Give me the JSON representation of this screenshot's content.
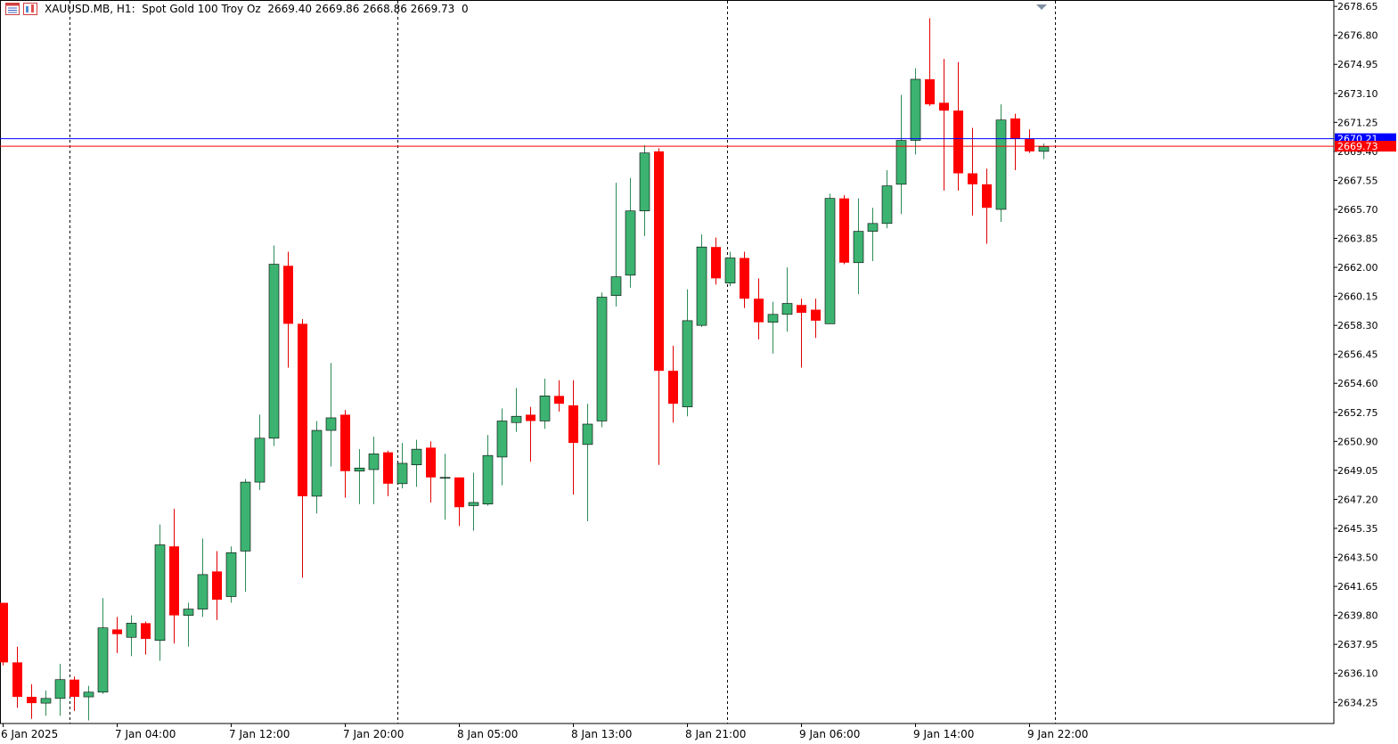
{
  "header": {
    "symbol": "XAUUSD.MB",
    "timeframe": "H1:",
    "description": "Spot Gold 100 Troy Oz",
    "ohlc": "2669.40 2669.86 2668.86 2669.73",
    "volume": "0"
  },
  "colors": {
    "bull": "#3cb371",
    "bear": "#ff0000",
    "wick_bull": "#2e8b57",
    "wick_bear": "#e00000",
    "ask_line": "#0000ff",
    "bid_line": "#ff0000",
    "separator": "#000000"
  },
  "chart_data": {
    "type": "candlestick",
    "symbol": "XAUUSD.MB",
    "timeframe": "H1",
    "ylim": [
      2632.9,
      2679.0
    ],
    "y_ticks": [
      "2678.65",
      "2676.80",
      "2674.95",
      "2673.10",
      "2671.25",
      "2669.40",
      "2667.55",
      "2665.70",
      "2663.85",
      "2662.00",
      "2660.15",
      "2658.30",
      "2656.45",
      "2654.60",
      "2652.75",
      "2650.90",
      "2649.05",
      "2647.20",
      "2645.35",
      "2643.50",
      "2641.65",
      "2639.80",
      "2637.95",
      "2636.10",
      "2634.25"
    ],
    "x_labels": [
      {
        "label": "6 Jan 2025",
        "index": 0
      },
      {
        "label": "7 Jan 04:00",
        "index": 8
      },
      {
        "label": "7 Jan 12:00",
        "index": 16
      },
      {
        "label": "7 Jan 20:00",
        "index": 24
      },
      {
        "label": "8 Jan 05:00",
        "index": 32
      },
      {
        "label": "8 Jan 13:00",
        "index": 40
      },
      {
        "label": "8 Jan 21:00",
        "index": 48
      },
      {
        "label": "9 Jan 06:00",
        "index": 56
      },
      {
        "label": "9 Jan 14:00",
        "index": 64
      },
      {
        "label": "9 Jan 22:00",
        "index": 72
      }
    ],
    "day_separators": [
      4.7,
      27.7,
      50.8,
      73.8
    ],
    "ask": {
      "value": 2670.21,
      "label": "2670.21"
    },
    "bid": {
      "value": 2669.73,
      "label": "2669.73"
    },
    "candles": [
      {
        "o": 2640.6,
        "h": 2640.6,
        "l": 2636.6,
        "c": 2636.8
      },
      {
        "o": 2636.8,
        "h": 2637.8,
        "l": 2633.9,
        "c": 2634.6
      },
      {
        "o": 2634.6,
        "h": 2635.4,
        "l": 2633.2,
        "c": 2634.2
      },
      {
        "o": 2634.2,
        "h": 2635.0,
        "l": 2633.4,
        "c": 2634.5
      },
      {
        "o": 2634.5,
        "h": 2636.7,
        "l": 2633.4,
        "c": 2635.7
      },
      {
        "o": 2635.7,
        "h": 2635.9,
        "l": 2633.7,
        "c": 2634.6
      },
      {
        "o": 2634.6,
        "h": 2635.3,
        "l": 2633.1,
        "c": 2634.9
      },
      {
        "o": 2634.9,
        "h": 2640.9,
        "l": 2634.8,
        "c": 2639.0
      },
      {
        "o": 2638.9,
        "h": 2639.7,
        "l": 2637.4,
        "c": 2638.6
      },
      {
        "o": 2638.4,
        "h": 2639.8,
        "l": 2637.2,
        "c": 2639.3
      },
      {
        "o": 2639.3,
        "h": 2639.4,
        "l": 2637.3,
        "c": 2638.3
      },
      {
        "o": 2638.2,
        "h": 2645.6,
        "l": 2636.9,
        "c": 2644.3
      },
      {
        "o": 2644.2,
        "h": 2646.6,
        "l": 2638.0,
        "c": 2639.8
      },
      {
        "o": 2639.8,
        "h": 2640.6,
        "l": 2637.8,
        "c": 2640.2
      },
      {
        "o": 2640.2,
        "h": 2644.7,
        "l": 2639.7,
        "c": 2642.4
      },
      {
        "o": 2642.6,
        "h": 2643.9,
        "l": 2639.5,
        "c": 2640.8
      },
      {
        "o": 2641.0,
        "h": 2644.2,
        "l": 2640.6,
        "c": 2643.8
      },
      {
        "o": 2643.9,
        "h": 2648.5,
        "l": 2641.3,
        "c": 2648.3
      },
      {
        "o": 2648.3,
        "h": 2652.6,
        "l": 2647.8,
        "c": 2651.1
      },
      {
        "o": 2651.1,
        "h": 2663.4,
        "l": 2650.6,
        "c": 2662.2
      },
      {
        "o": 2662.1,
        "h": 2663.0,
        "l": 2655.6,
        "c": 2658.4
      },
      {
        "o": 2658.4,
        "h": 2658.7,
        "l": 2642.2,
        "c": 2647.4
      },
      {
        "o": 2647.4,
        "h": 2652.2,
        "l": 2646.3,
        "c": 2651.6
      },
      {
        "o": 2651.6,
        "h": 2655.9,
        "l": 2649.3,
        "c": 2652.4
      },
      {
        "o": 2652.6,
        "h": 2652.9,
        "l": 2647.3,
        "c": 2649.0
      },
      {
        "o": 2649.0,
        "h": 2650.4,
        "l": 2646.9,
        "c": 2649.2
      },
      {
        "o": 2649.1,
        "h": 2651.2,
        "l": 2646.9,
        "c": 2650.1
      },
      {
        "o": 2650.2,
        "h": 2650.3,
        "l": 2647.4,
        "c": 2648.2
      },
      {
        "o": 2648.2,
        "h": 2650.8,
        "l": 2647.9,
        "c": 2649.5
      },
      {
        "o": 2649.4,
        "h": 2651.0,
        "l": 2648.0,
        "c": 2650.4
      },
      {
        "o": 2650.5,
        "h": 2650.9,
        "l": 2647.0,
        "c": 2648.6
      },
      {
        "o": 2648.6,
        "h": 2650.1,
        "l": 2645.9,
        "c": 2648.6
      },
      {
        "o": 2648.6,
        "h": 2648.6,
        "l": 2645.5,
        "c": 2646.7
      },
      {
        "o": 2646.8,
        "h": 2648.9,
        "l": 2645.2,
        "c": 2647.0
      },
      {
        "o": 2646.9,
        "h": 2651.3,
        "l": 2646.8,
        "c": 2650.0
      },
      {
        "o": 2649.9,
        "h": 2653.0,
        "l": 2648.1,
        "c": 2652.2
      },
      {
        "o": 2652.1,
        "h": 2654.3,
        "l": 2651.5,
        "c": 2652.5
      },
      {
        "o": 2652.6,
        "h": 2653.1,
        "l": 2649.6,
        "c": 2652.2
      },
      {
        "o": 2652.2,
        "h": 2654.9,
        "l": 2651.7,
        "c": 2653.8
      },
      {
        "o": 2653.8,
        "h": 2654.8,
        "l": 2652.8,
        "c": 2653.3
      },
      {
        "o": 2653.2,
        "h": 2654.8,
        "l": 2647.5,
        "c": 2650.8
      },
      {
        "o": 2650.7,
        "h": 2653.3,
        "l": 2645.8,
        "c": 2652.0
      },
      {
        "o": 2652.2,
        "h": 2660.4,
        "l": 2651.8,
        "c": 2660.1
      },
      {
        "o": 2660.2,
        "h": 2667.4,
        "l": 2659.5,
        "c": 2661.4
      },
      {
        "o": 2661.5,
        "h": 2667.7,
        "l": 2660.7,
        "c": 2665.6
      },
      {
        "o": 2665.6,
        "h": 2669.8,
        "l": 2664.0,
        "c": 2669.3
      },
      {
        "o": 2669.4,
        "h": 2669.6,
        "l": 2649.4,
        "c": 2655.4
      },
      {
        "o": 2655.4,
        "h": 2657.0,
        "l": 2652.1,
        "c": 2653.3
      },
      {
        "o": 2653.1,
        "h": 2660.6,
        "l": 2652.5,
        "c": 2658.6
      },
      {
        "o": 2658.3,
        "h": 2664.1,
        "l": 2658.2,
        "c": 2663.3
      },
      {
        "o": 2663.3,
        "h": 2663.9,
        "l": 2660.9,
        "c": 2661.3
      },
      {
        "o": 2661.0,
        "h": 2663.0,
        "l": 2660.8,
        "c": 2662.6
      },
      {
        "o": 2662.6,
        "h": 2663.0,
        "l": 2659.4,
        "c": 2660.0
      },
      {
        "o": 2660.0,
        "h": 2661.3,
        "l": 2657.4,
        "c": 2658.5
      },
      {
        "o": 2658.5,
        "h": 2659.8,
        "l": 2656.5,
        "c": 2659.0
      },
      {
        "o": 2659.0,
        "h": 2662.0,
        "l": 2657.9,
        "c": 2659.7
      },
      {
        "o": 2659.6,
        "h": 2660.0,
        "l": 2655.6,
        "c": 2659.1
      },
      {
        "o": 2659.3,
        "h": 2660.0,
        "l": 2657.5,
        "c": 2658.6
      },
      {
        "o": 2658.4,
        "h": 2666.7,
        "l": 2658.4,
        "c": 2666.4
      },
      {
        "o": 2666.4,
        "h": 2666.6,
        "l": 2662.2,
        "c": 2662.3
      },
      {
        "o": 2662.3,
        "h": 2666.4,
        "l": 2660.3,
        "c": 2664.3
      },
      {
        "o": 2664.3,
        "h": 2665.8,
        "l": 2662.4,
        "c": 2664.8
      },
      {
        "o": 2664.8,
        "h": 2668.2,
        "l": 2664.5,
        "c": 2667.2
      },
      {
        "o": 2667.3,
        "h": 2673.0,
        "l": 2665.4,
        "c": 2670.1
      },
      {
        "o": 2670.1,
        "h": 2674.7,
        "l": 2669.2,
        "c": 2674.0
      },
      {
        "o": 2674.0,
        "h": 2677.9,
        "l": 2672.3,
        "c": 2672.4
      },
      {
        "o": 2672.5,
        "h": 2675.3,
        "l": 2666.9,
        "c": 2672.0
      },
      {
        "o": 2672.0,
        "h": 2675.1,
        "l": 2666.9,
        "c": 2668.0
      },
      {
        "o": 2668.0,
        "h": 2670.9,
        "l": 2665.3,
        "c": 2667.3
      },
      {
        "o": 2667.3,
        "h": 2668.3,
        "l": 2663.5,
        "c": 2665.8
      },
      {
        "o": 2665.7,
        "h": 2672.4,
        "l": 2664.9,
        "c": 2671.4
      },
      {
        "o": 2671.5,
        "h": 2671.8,
        "l": 2668.2,
        "c": 2670.2
      },
      {
        "o": 2670.2,
        "h": 2670.8,
        "l": 2669.3,
        "c": 2669.4
      },
      {
        "o": 2669.4,
        "h": 2669.9,
        "l": 2668.9,
        "c": 2669.7
      }
    ]
  }
}
